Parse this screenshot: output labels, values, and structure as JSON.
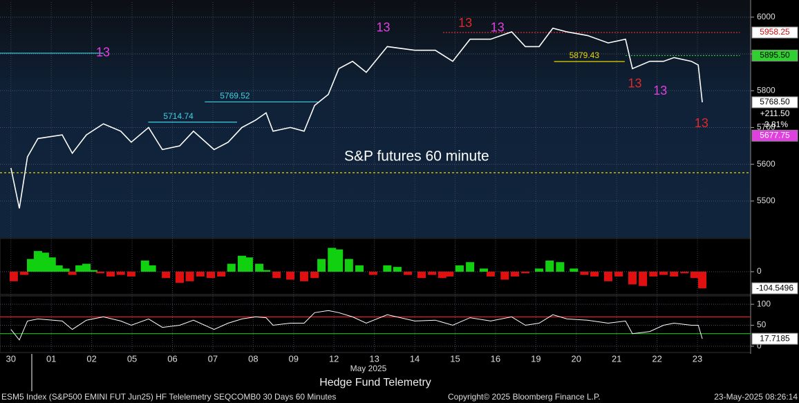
{
  "chart_data": [
    {
      "type": "line",
      "annotation": "S&P futures 60 minute",
      "color": "#ffffff",
      "x": [
        0,
        0.21,
        0.41,
        0.67,
        1.27,
        1.52,
        1.87,
        2.29,
        2.72,
        2.98,
        3.41,
        3.75,
        4.18,
        4.52,
        5.03,
        5.38,
        5.72,
        6.06,
        6.32,
        6.49,
        6.92,
        7.26,
        7.52,
        7.86,
        8.12,
        8.46,
        8.8,
        9.32,
        10.0,
        10.51,
        10.94,
        11.37,
        11.88,
        12.4,
        12.74,
        13.08,
        13.42,
        13.77,
        14.28,
        14.79,
        15.22,
        15.39,
        15.82,
        16.16,
        16.42,
        16.85,
        17.02,
        17.12
      ],
      "values": [
        5590,
        5480,
        5620,
        5670,
        5680,
        5630,
        5680,
        5710,
        5690,
        5660,
        5700,
        5640,
        5650,
        5690,
        5640,
        5660,
        5700,
        5720,
        5740,
        5690,
        5700,
        5690,
        5760,
        5790,
        5860,
        5880,
        5850,
        5920,
        5910,
        5910,
        5880,
        5940,
        5940,
        5960,
        5920,
        5920,
        5970,
        5960,
        5950,
        5930,
        5940,
        5860,
        5880,
        5880,
        5890,
        5880,
        5870,
        5768.5
      ],
      "ylim": [
        5402,
        6041
      ],
      "yticks": [
        5500,
        5600,
        5700,
        5800,
        5900,
        6000
      ],
      "grid": true,
      "levels": [
        {
          "value": 5577,
          "x": [
            -0.27,
            18.3
          ],
          "color": "#e8d800"
        },
        {
          "value": 5958.25,
          "x": [
            10.7,
            18.05
          ],
          "color": "#e03030"
        },
        {
          "value": 5895.5,
          "x": [
            15.22,
            18.05
          ],
          "color": "#30d030"
        },
        {
          "value": 5902,
          "x": [
            -0.27,
            2.3
          ],
          "color": "#40d0e0"
        },
        {
          "value": 5714.74,
          "x": [
            3.4,
            5.6
          ],
          "color": "#40d0e0",
          "label": "5714.74"
        },
        {
          "value": 5769.52,
          "x": [
            4.8,
            7.6
          ],
          "color": "#40d0e0",
          "label": "5769.52"
        },
        {
          "value": 5879.43,
          "x": [
            13.45,
            15.2
          ],
          "color": "#e8d800",
          "label": "5879.43"
        }
      ],
      "markers": [
        {
          "text": "13",
          "x": 2.28,
          "y": 5902,
          "color": "#e040e0"
        },
        {
          "text": "13",
          "x": 9.22,
          "y": 5970,
          "color": "#e040e0"
        },
        {
          "text": "13",
          "x": 12.05,
          "y": 5970,
          "color": "#e040e0"
        },
        {
          "text": "13",
          "x": 16.08,
          "y": 5798,
          "color": "#e040e0"
        },
        {
          "text": "13",
          "x": 11.25,
          "y": 5982,
          "color": "#e02828"
        },
        {
          "text": "13",
          "x": 17.1,
          "y": 5710,
          "color": "#e02828"
        },
        {
          "text": "13",
          "x": 15.45,
          "y": 5818,
          "color": "#e02828"
        }
      ],
      "tags": [
        {
          "value": 5958.25,
          "label": "5958.25",
          "bg": "#ffffff",
          "fg": "#d01010"
        },
        {
          "value": 5895.5,
          "label": "5895.50",
          "bg": "#30d030",
          "fg": "#000000"
        },
        {
          "value": 5768.5,
          "label": "5768.50",
          "bg": "#ffffff",
          "fg": "#000000"
        },
        {
          "value": 5677.75,
          "label": "5677.75",
          "bg": "#e040e0",
          "fg": "#ffffff"
        }
      ],
      "change": "+211.50",
      "change_pct": "3.81%"
    },
    {
      "type": "bar",
      "colors": [
        "#10d010",
        "#e01010"
      ],
      "x": [
        0.07,
        0.33,
        0.5,
        0.67,
        0.84,
        1.01,
        1.18,
        1.35,
        1.52,
        1.7,
        1.87,
        2.04,
        2.21,
        2.47,
        2.72,
        2.98,
        3.32,
        3.49,
        3.84,
        4.18,
        4.43,
        4.69,
        4.95,
        5.21,
        5.46,
        5.72,
        5.89,
        6.15,
        6.32,
        6.58,
        6.92,
        7.26,
        7.52,
        7.69,
        7.95,
        8.12,
        8.37,
        8.63,
        8.97,
        9.32,
        9.57,
        9.83,
        10.17,
        10.43,
        10.68,
        10.86,
        11.11,
        11.37,
        11.71,
        11.88,
        12.23,
        12.48,
        12.74,
        13.08,
        13.34,
        13.6,
        13.94,
        14.2,
        14.45,
        14.79,
        15.05,
        15.39,
        15.65,
        15.91,
        16.16,
        16.42,
        16.68,
        16.93,
        17.12
      ],
      "values": [
        -60,
        -20,
        80,
        130,
        120,
        90,
        40,
        20,
        -20,
        40,
        50,
        10,
        -10,
        -30,
        -20,
        -30,
        70,
        40,
        -40,
        -70,
        -60,
        -30,
        -40,
        -30,
        50,
        100,
        90,
        50,
        10,
        -40,
        -50,
        -60,
        -40,
        80,
        150,
        140,
        80,
        40,
        -20,
        40,
        30,
        -20,
        -40,
        -20,
        -40,
        -30,
        40,
        60,
        20,
        -30,
        -50,
        -30,
        -10,
        20,
        70,
        60,
        20,
        -20,
        -30,
        -60,
        -30,
        -80,
        -90,
        -30,
        -20,
        -30,
        -10,
        -40,
        -104.5496
      ],
      "ylim": [
        -139,
        209
      ],
      "yticks": [
        0
      ],
      "tag": {
        "value": -104.5496,
        "label": "-104.5496"
      }
    },
    {
      "type": "line",
      "color": "#ffffff",
      "x": [
        0,
        0.21,
        0.41,
        0.67,
        1.27,
        1.52,
        1.87,
        2.29,
        2.72,
        2.98,
        3.41,
        3.75,
        4.18,
        4.52,
        5.03,
        5.38,
        5.72,
        6.06,
        6.32,
        6.49,
        6.92,
        7.26,
        7.52,
        7.86,
        8.12,
        8.46,
        8.8,
        9.32,
        10.0,
        10.51,
        10.94,
        11.37,
        11.88,
        12.4,
        12.74,
        13.08,
        13.42,
        13.77,
        14.28,
        14.79,
        15.22,
        15.39,
        15.82,
        16.16,
        16.42,
        16.85,
        17.02,
        17.12
      ],
      "values": [
        40,
        15,
        60,
        65,
        60,
        40,
        62,
        70,
        60,
        50,
        65,
        45,
        50,
        62,
        40,
        55,
        65,
        70,
        68,
        50,
        55,
        55,
        80,
        85,
        80,
        70,
        55,
        75,
        60,
        62,
        50,
        68,
        60,
        70,
        50,
        55,
        75,
        65,
        62,
        55,
        60,
        30,
        35,
        50,
        55,
        50,
        50,
        17.7185
      ],
      "ylim": [
        -15,
        120
      ],
      "yticks": [
        0,
        50,
        100
      ],
      "levels": [
        {
          "value": 70,
          "color": "#e02020"
        },
        {
          "value": 30,
          "color": "#20c020"
        }
      ],
      "tag": {
        "value": 17.7185,
        "label": "17.7185"
      }
    }
  ],
  "time_axis": {
    "xlim": [
      -0.27,
      18.3
    ],
    "xticks": [
      {
        "value": 0,
        "label": "30"
      },
      {
        "value": 1,
        "label": "01"
      },
      {
        "value": 2,
        "label": "02"
      },
      {
        "value": 3,
        "label": "05"
      },
      {
        "value": 4,
        "label": "06"
      },
      {
        "value": 5,
        "label": "07"
      },
      {
        "value": 6,
        "label": "08"
      },
      {
        "value": 7,
        "label": "09"
      },
      {
        "value": 8,
        "label": "12"
      },
      {
        "value": 9,
        "label": "13"
      },
      {
        "value": 10,
        "label": "14"
      },
      {
        "value": 11,
        "label": "15"
      },
      {
        "value": 12,
        "label": "16"
      },
      {
        "value": 13,
        "label": "19"
      },
      {
        "value": 14,
        "label": "20"
      },
      {
        "value": 15,
        "label": "21"
      },
      {
        "value": 16,
        "label": "22"
      },
      {
        "value": 17,
        "label": "23"
      }
    ],
    "month_label": "May 2025"
  },
  "footer": {
    "title": "Hedge Fund Telemetry",
    "security": "ESM5 Index (S&P500 EMINI FUT  Jun25) HF Telelemetry SEQCOMB0 30 Days 60 Minutes",
    "copyright": "Copyright© 2025 Bloomberg Finance L.P.",
    "timestamp": "23-May-2025 08:26:14"
  }
}
